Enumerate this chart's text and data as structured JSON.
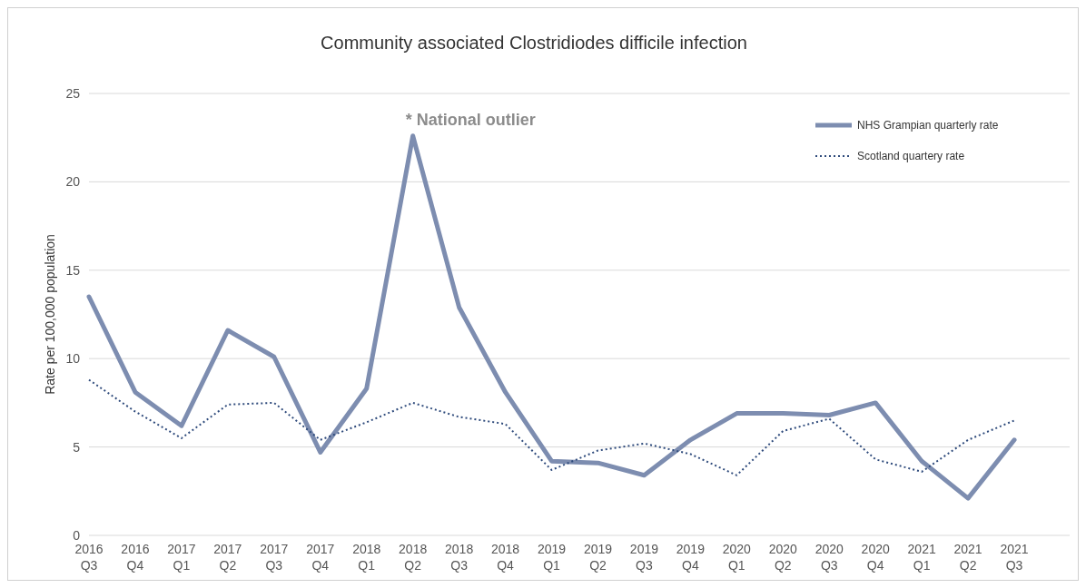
{
  "chart_data": {
    "type": "line",
    "title": "Community associated Clostridiodes difficile infection",
    "ylabel": "Rate per 100,000 population",
    "categories": [
      "2016 Q3",
      "2016 Q4",
      "2017 Q1",
      "2017 Q2",
      "2017 Q3",
      "2017 Q4",
      "2018 Q1",
      "2018 Q2",
      "2018 Q3",
      "2018 Q4",
      "2019 Q1",
      "2019 Q2",
      "2019 Q3",
      "2019 Q4",
      "2020 Q1",
      "2020 Q2",
      "2020 Q3",
      "2020 Q4",
      "2021 Q1",
      "2021 Q2",
      "2021 Q3",
      null
    ],
    "series": [
      {
        "name": "NHS Grampian quarterly rate",
        "color": "#7d8db0",
        "line_style": "solid",
        "values": [
          13.5,
          8.1,
          6.2,
          11.6,
          10.1,
          4.7,
          8.3,
          22.6,
          12.9,
          8.1,
          4.2,
          4.1,
          3.4,
          5.4,
          6.9,
          6.9,
          6.8,
          7.5,
          4.2,
          2.1,
          5.4,
          null
        ]
      },
      {
        "name": "Scotland quartery rate",
        "color": "#2f4b7c",
        "line_style": "dotted",
        "values": [
          8.8,
          7.0,
          5.5,
          7.4,
          7.5,
          5.4,
          6.4,
          7.5,
          6.7,
          6.3,
          3.7,
          4.8,
          5.2,
          4.6,
          3.4,
          5.9,
          6.6,
          4.3,
          3.6,
          5.4,
          6.5,
          null
        ]
      }
    ],
    "ylim": [
      0,
      25
    ],
    "yticks": [
      0,
      5,
      10,
      15,
      20,
      25
    ],
    "grid": "y",
    "legend": "top right",
    "marker": "none",
    "annotations": [
      {
        "text": "* National outlier",
        "x": "2018 Q2",
        "y": 22.6
      }
    ]
  }
}
